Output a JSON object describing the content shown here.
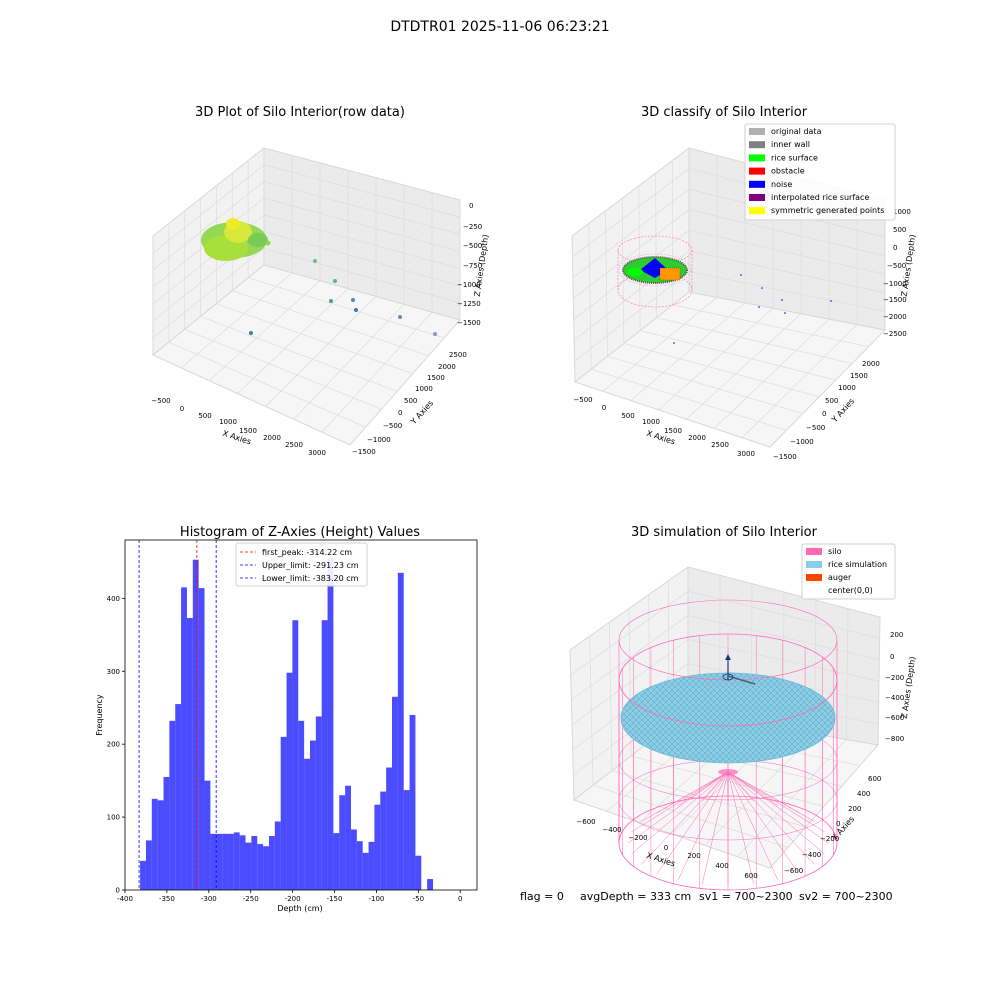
{
  "figure_title": "DTDTR01 2025-11-06 06:23:21",
  "footer": {
    "flag": "flag = 0",
    "avg_depth": "avgDepth = 333 cm",
    "sv1": "sv1 = 700~2300",
    "sv2": "sv2 = 700~2300"
  },
  "chart_data": [
    {
      "type": "scatter",
      "title": "3D Plot of Silo Interior(row data)",
      "xlabel": "X Axies",
      "ylabel": "Y Axies",
      "zlabel": "Z Axies (Depth)",
      "x_ticks": [
        "−500",
        "0",
        "500",
        "1000",
        "1500",
        "2000",
        "2500",
        "3000"
      ],
      "y_ticks": [
        "−1500",
        "−1000",
        "−500",
        "0",
        "500",
        "1000",
        "1500",
        "2000",
        "2500"
      ],
      "z_ticks": [
        "0",
        "−250",
        "−500",
        "−750",
        "−1000",
        "−1250",
        "−1500"
      ],
      "grid": true
    },
    {
      "type": "scatter",
      "title": "3D classify of Silo Interior",
      "xlabel": "X Axies",
      "ylabel": "Y Axies",
      "zlabel": "Z Axies (Depth)",
      "x_ticks": [
        "−500",
        "0",
        "500",
        "1000",
        "1500",
        "2000",
        "2500",
        "3000"
      ],
      "y_ticks": [
        "−1500",
        "−1000",
        "−500",
        "0",
        "500",
        "1000",
        "1500",
        "2000"
      ],
      "z_ticks": [
        "1000",
        "500",
        "0",
        "−500",
        "−1000",
        "−1500",
        "−2000",
        "−2500"
      ],
      "legend": [
        {
          "label": "original data",
          "color": "#b0b0b0"
        },
        {
          "label": "inner wall",
          "color": "#808080"
        },
        {
          "label": "rice surface",
          "color": "#00ff00"
        },
        {
          "label": "obstacle",
          "color": "#ff0000"
        },
        {
          "label": "noise",
          "color": "#0000ff"
        },
        {
          "label": "interpolated rice surface",
          "color": "#800080"
        },
        {
          "label": "symmetric generated points",
          "color": "#ffff00"
        }
      ],
      "legend_position": "top-right",
      "grid": true
    },
    {
      "type": "bar",
      "title": "Histogram of Z-Axies (Height) Values",
      "xlabel": "Depth (cm)",
      "ylabel": "Frequency",
      "xlim": [
        -400,
        20
      ],
      "ylim": [
        0,
        480
      ],
      "bin_start": -382,
      "bin_width": 6.99,
      "values": [
        40,
        68,
        125,
        123,
        155,
        232,
        255,
        415,
        373,
        453,
        414,
        150,
        77,
        77,
        77,
        77,
        79,
        75,
        65,
        74,
        63,
        60,
        74,
        94,
        210,
        298,
        370,
        232,
        180,
        205,
        238,
        370,
        455,
        78,
        130,
        143,
        83,
        67,
        51,
        66,
        117,
        135,
        168,
        265,
        435,
        137,
        240,
        47,
        0,
        15
      ],
      "x_ticks": [
        -400,
        -350,
        -300,
        -250,
        -200,
        -150,
        -100,
        -50,
        0
      ],
      "y_ticks": [
        0,
        100,
        200,
        300,
        400
      ],
      "bar_color": "#0000ff",
      "vlines": [
        {
          "label": "first_peak: -314.22 cm",
          "x": -314.22,
          "color": "#ff0000"
        },
        {
          "label": "Upper_limit: -291.23 cm",
          "x": -291.23,
          "color": "#0000ff"
        },
        {
          "label": "Lower_limit: -383.20 cm",
          "x": -383.2,
          "color": "#0000ff"
        }
      ],
      "legend_position": "top-center"
    },
    {
      "type": "scatter",
      "title": "3D simulation of Silo Interior",
      "xlabel": "X Axies",
      "ylabel": "Y Axies",
      "zlabel": "Z Axies (Depth)",
      "x_ticks": [
        "−600",
        "−400",
        "−200",
        "0",
        "200",
        "400",
        "600"
      ],
      "y_ticks": [
        "−600",
        "−400",
        "−200",
        "0",
        "200",
        "400",
        "600"
      ],
      "z_ticks": [
        "200",
        "0",
        "−200",
        "−400",
        "−600",
        "−800"
      ],
      "legend": [
        {
          "label": "silo",
          "color": "#ff69b4"
        },
        {
          "label": "rice simulation",
          "color": "#87ceeb"
        },
        {
          "label": "auger",
          "color": "#ff4500"
        },
        {
          "label": "center(0,0)",
          "color": ""
        }
      ],
      "legend_position": "top-right",
      "grid": true
    }
  ]
}
